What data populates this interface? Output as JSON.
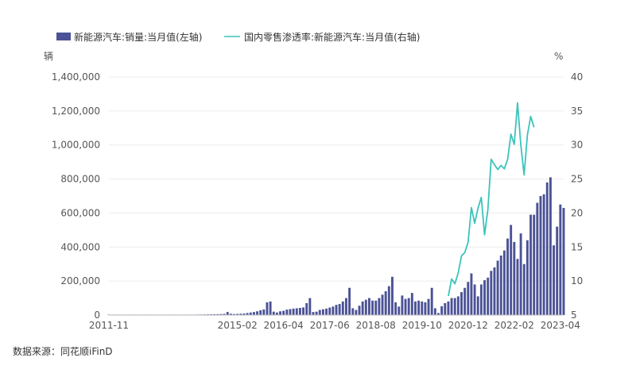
{
  "chart_data": {
    "type": "bar+line",
    "legend": [
      {
        "name": "新能源汽车:销量:当月值(左轴)",
        "kind": "bar",
        "color": "#4b5296"
      },
      {
        "name": "国内零售渗透率:新能源汽车:当月值(右轴)",
        "kind": "line",
        "color": "#3cc4ba"
      }
    ],
    "left_axis": {
      "unit": "辆",
      "min": 0,
      "max": 1400000,
      "ticks": [
        "0",
        "200,000",
        "400,000",
        "600,000",
        "800,000",
        "1,000,000",
        "1,200,000",
        "1,400,000"
      ]
    },
    "right_axis": {
      "unit": "%",
      "min": 5,
      "max": 40,
      "ticks": [
        "5",
        "10",
        "15",
        "20",
        "25",
        "30",
        "35",
        "40"
      ]
    },
    "x_ticks": [
      "2011-11",
      "2015-02",
      "2016-04",
      "2017-06",
      "2018-08",
      "2019-10",
      "2020-12",
      "2022-02",
      "2023-04"
    ],
    "start": "2011-11",
    "bar_series": {
      "name": "新能源汽车:销量:当月值",
      "color": "#4b5296",
      "values": [
        500,
        600,
        300,
        500,
        700,
        800,
        900,
        1000,
        1100,
        1200,
        1300,
        1400,
        1500,
        1300,
        1400,
        1500,
        1600,
        1700,
        1800,
        2000,
        2100,
        2300,
        2500,
        2600,
        2800,
        2500,
        2900,
        3200,
        3500,
        3800,
        4200,
        4600,
        5000,
        5500,
        6000,
        7000,
        18000,
        8000,
        6000,
        7000,
        8000,
        9000,
        12000,
        15000,
        18000,
        22000,
        28000,
        33000,
        75000,
        80000,
        20000,
        15000,
        22000,
        25000,
        32000,
        35000,
        38000,
        40000,
        42000,
        45000,
        70000,
        100000,
        18000,
        20000,
        30000,
        34000,
        38000,
        44000,
        50000,
        60000,
        65000,
        80000,
        100000,
        160000,
        40000,
        30000,
        55000,
        80000,
        90000,
        100000,
        85000,
        85000,
        100000,
        120000,
        140000,
        170000,
        225000,
        75000,
        50000,
        115000,
        95000,
        100000,
        130000,
        80000,
        85000,
        80000,
        75000,
        95000,
        160000,
        40000,
        12000,
        52000,
        70000,
        80000,
        100000,
        100000,
        110000,
        135000,
        160000,
        195000,
        245000,
        180000,
        110000,
        180000,
        205000,
        220000,
        260000,
        280000,
        320000,
        350000,
        380000,
        450000,
        530000,
        430000,
        330000,
        480000,
        300000,
        440000,
        590000,
        590000,
        660000,
        700000,
        710000,
        780000,
        810000,
        410000,
        520000,
        650000,
        630000
      ]
    },
    "line_series": {
      "name": "国内零售渗透率:新能源汽车:当月值",
      "color": "#3cc4ba",
      "start": "2020-06",
      "values": [
        7.8,
        10.3,
        9.6,
        11.2,
        13.7,
        14.2,
        15.7,
        20.8,
        18.5,
        20.7,
        22.3,
        16.8,
        20.5,
        27.9,
        27.1,
        26.4,
        27.0,
        26.5,
        27.9,
        31.6,
        30.1,
        36.2,
        30.0,
        25.6,
        31.5,
        34.2,
        32.6
      ]
    }
  },
  "source_note": "数据来源：同花顺iFinD"
}
